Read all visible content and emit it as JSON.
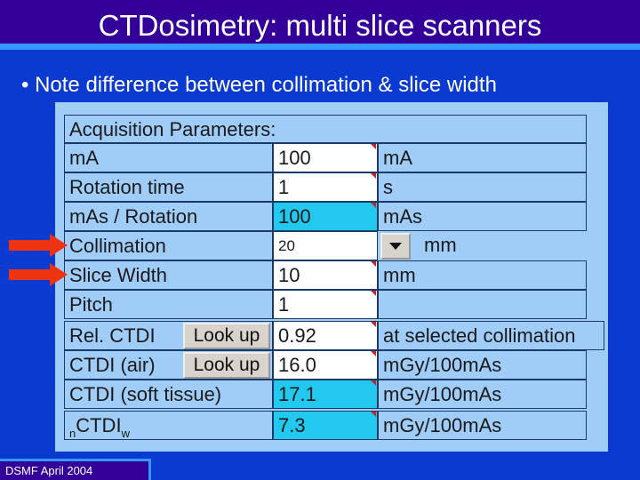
{
  "header": {
    "title": "CTDosimetry: multi slice scanners"
  },
  "bullet": "Note difference between collimation & slice width",
  "panel": {
    "heading": "Acquisition Parameters:",
    "rows": [
      {
        "label": "mA",
        "value": "100",
        "unit": "mA"
      },
      {
        "label": "Rotation time",
        "value": "1",
        "unit": "s"
      },
      {
        "label": "mAs / Rotation",
        "value": "100",
        "unit": "mAs",
        "highlight": true
      },
      {
        "label": "Collimation",
        "value": "20",
        "unit": "mm",
        "dropdown": true,
        "arrow": true
      },
      {
        "label": "Slice Width",
        "value": "10",
        "unit": "mm",
        "arrow": true
      },
      {
        "label": "Pitch",
        "value": "1"
      },
      {
        "label": "Rel. CTDI",
        "button": "Look up",
        "value": "0.92",
        "unit": "at selected collimation"
      },
      {
        "label": "CTDI (air)",
        "button": "Look up",
        "value": "16.0",
        "unit": "mGy/100mAs"
      },
      {
        "label": "CTDI (soft tissue)",
        "value": "17.1",
        "unit": "mGy/100mAs",
        "highlight": true
      },
      {
        "label": {
          "prefix": "n",
          "main": "CTDI",
          "sub": "w"
        },
        "value": "7.3",
        "unit": "mGy/100mAs",
        "highlight": true
      }
    ]
  },
  "footer": "DSMF April 2004"
}
